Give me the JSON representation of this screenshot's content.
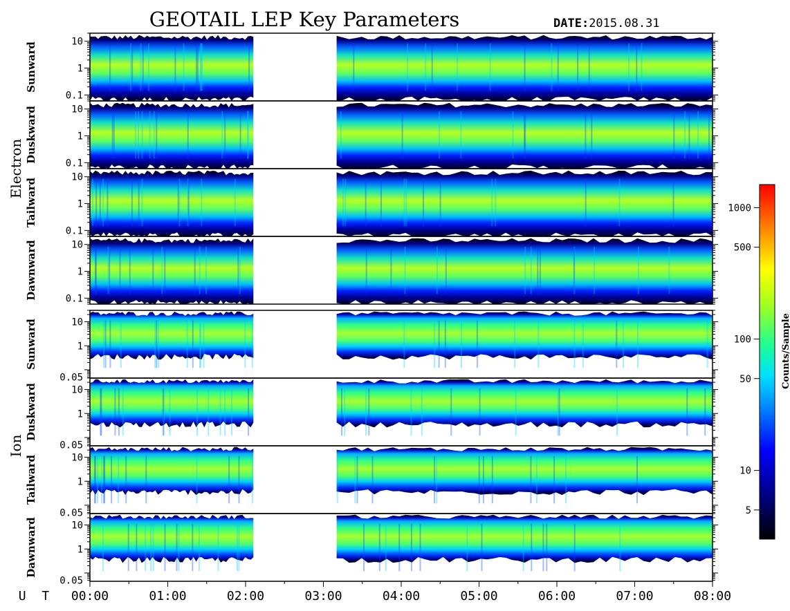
{
  "chart_data": {
    "type": "heatmap",
    "title": "GEOTAIL LEP Key Parameters",
    "date_label": "DATE:",
    "date_value": "2015.08.31",
    "x_axis": {
      "label": "U T",
      "range_hours": [
        0,
        8
      ],
      "tick_labels": [
        "00:00",
        "01:00",
        "02:00",
        "03:00",
        "04:00",
        "05:00",
        "06:00",
        "07:00",
        "08:00"
      ]
    },
    "data_gap_hours": [
      2.1,
      3.17
    ],
    "groups": [
      {
        "name": "Electron",
        "y_scale": "log",
        "y_range": [
          0.06,
          20
        ],
        "y_ticks": [
          {
            "value": 10,
            "label": "10"
          },
          {
            "value": 1,
            "label": "1"
          },
          {
            "value": 0.1,
            "label": "0.1"
          }
        ],
        "panels": [
          {
            "name": "Sunward"
          },
          {
            "name": "Duskward"
          },
          {
            "name": "Tailward"
          },
          {
            "name": "Dawnward"
          }
        ]
      },
      {
        "name": "Ion",
        "y_scale": "log",
        "y_range": [
          0.045,
          30
        ],
        "y_ticks": [
          {
            "value": 10,
            "label": "10"
          },
          {
            "value": 1,
            "label": "1"
          },
          {
            "value": 0.05,
            "label": "0.05"
          }
        ],
        "panels": [
          {
            "name": "Sunward"
          },
          {
            "name": "Duskward"
          },
          {
            "name": "Tailward"
          },
          {
            "name": "Dawnward"
          }
        ]
      }
    ],
    "colorbar": {
      "label": "Counts/Sample",
      "scale": "log",
      "range": [
        3,
        1500
      ],
      "ticks": [
        {
          "value": 1000,
          "label": "1000"
        },
        {
          "value": 500,
          "label": "500"
        },
        {
          "value": 100,
          "label": "100"
        },
        {
          "value": 50,
          "label": "50"
        },
        {
          "value": 10,
          "label": "10"
        },
        {
          "value": 5,
          "label": "5"
        }
      ]
    }
  }
}
